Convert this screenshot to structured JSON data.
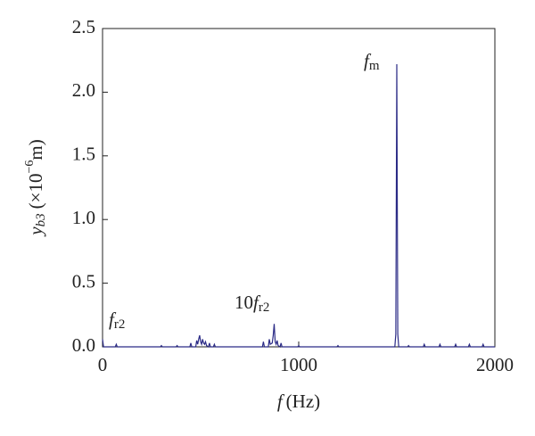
{
  "chart_data": {
    "type": "line",
    "xlabel": {
      "symbol": "f",
      "text": "(Hz)"
    },
    "ylabel": {
      "symbol": "y",
      "subscript": "b3",
      "text": "(×10",
      "superscript": "−6",
      "unit": "m)"
    },
    "annotations": [
      {
        "text": "f",
        "subscript": "r2"
      },
      {
        "prefix": "10",
        "text": "f",
        "subscript": "r2"
      },
      {
        "text": "f",
        "subscript": "m"
      }
    ],
    "x": [
      0,
      5,
      65,
      70,
      75,
      295,
      300,
      305,
      375,
      380,
      385,
      445,
      450,
      455,
      475,
      480,
      485,
      490,
      495,
      500,
      505,
      510,
      515,
      520,
      525,
      530,
      540,
      545,
      550,
      565,
      570,
      575,
      815,
      820,
      825,
      845,
      850,
      855,
      865,
      870,
      875,
      880,
      885,
      890,
      895,
      905,
      910,
      915,
      995,
      1000,
      1005,
      1195,
      1200,
      1205,
      1490,
      1495,
      1500,
      1505,
      1510,
      1555,
      1560,
      1565,
      1635,
      1640,
      1645,
      1715,
      1720,
      1725,
      1795,
      1800,
      1805,
      1865,
      1870,
      1875,
      1935,
      1940,
      1945,
      2000
    ],
    "series": [
      {
        "color": "#2b2b86",
        "values": [
          0.06,
          0,
          0,
          0.02,
          0,
          0,
          0.01,
          0,
          0,
          0.01,
          0,
          0,
          0.03,
          0,
          0,
          0.05,
          0.02,
          0.06,
          0.09,
          0.04,
          0.02,
          0.06,
          0.03,
          0.02,
          0.04,
          0.01,
          0,
          0.03,
          0,
          0,
          0.02,
          0,
          0,
          0.04,
          0,
          0,
          0.06,
          0.02,
          0.03,
          0.09,
          0.18,
          0.04,
          0.02,
          0.05,
          0.01,
          0,
          0.03,
          0,
          0,
          0.01,
          0,
          0,
          0.01,
          0,
          0,
          0.1,
          2.22,
          0.1,
          0,
          0,
          0.01,
          0,
          0,
          0.02,
          0,
          0,
          0.02,
          0,
          0,
          0.02,
          0,
          0,
          0.02,
          0,
          0,
          0.02,
          0,
          0
        ]
      }
    ],
    "xlim": [
      0,
      2000
    ],
    "xticks": [
      0,
      1000,
      2000
    ],
    "ylim": [
      0,
      2.5
    ],
    "yticks": [
      {
        "value": 0,
        "label": "0.0"
      },
      0.5,
      {
        "value": 1,
        "label": "1.0"
      },
      1.5,
      {
        "value": 2,
        "label": "2.0"
      },
      2.5
    ]
  }
}
